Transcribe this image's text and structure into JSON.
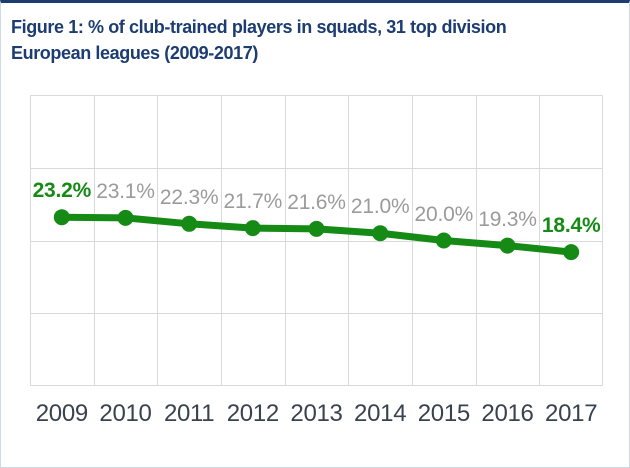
{
  "page": {
    "title_line1": "Figure 1: % of club-trained players in squads, 31 top division",
    "title_line2": "European leagues (2009-2017)"
  },
  "colors": {
    "title_navy": "#1c3c72",
    "top_border": "#1c3c72",
    "frame_border": "#ccd9e6",
    "grid_line": "#d9d9d9",
    "series_green": "#158a15",
    "point_label_gray": "#9b9b9b",
    "highlight_label_green": "#158a15",
    "year_label": "#39434e",
    "background": "#ffffff"
  },
  "chart_data": {
    "type": "line",
    "title": "Figure 1: % of club-trained players in squads, 31 top division European leagues (2009-2017)",
    "x": [
      "2009",
      "2010",
      "2011",
      "2012",
      "2013",
      "2014",
      "2015",
      "2016",
      "2017"
    ],
    "values": [
      23.2,
      23.1,
      22.3,
      21.7,
      21.6,
      21.0,
      20.0,
      19.3,
      18.4
    ],
    "point_labels": [
      "23.2%",
      "23.1%",
      "22.3%",
      "21.7%",
      "21.6%",
      "21.0%",
      "20.0%",
      "19.3%",
      "18.4%"
    ],
    "highlight_indices": [
      0,
      8
    ],
    "xlabel": "",
    "ylabel": "",
    "ylim": [
      0,
      40
    ],
    "y_grid_step": 10,
    "grid": true,
    "legend": false,
    "marker": "circle",
    "y_tick_labels_visible": false
  }
}
